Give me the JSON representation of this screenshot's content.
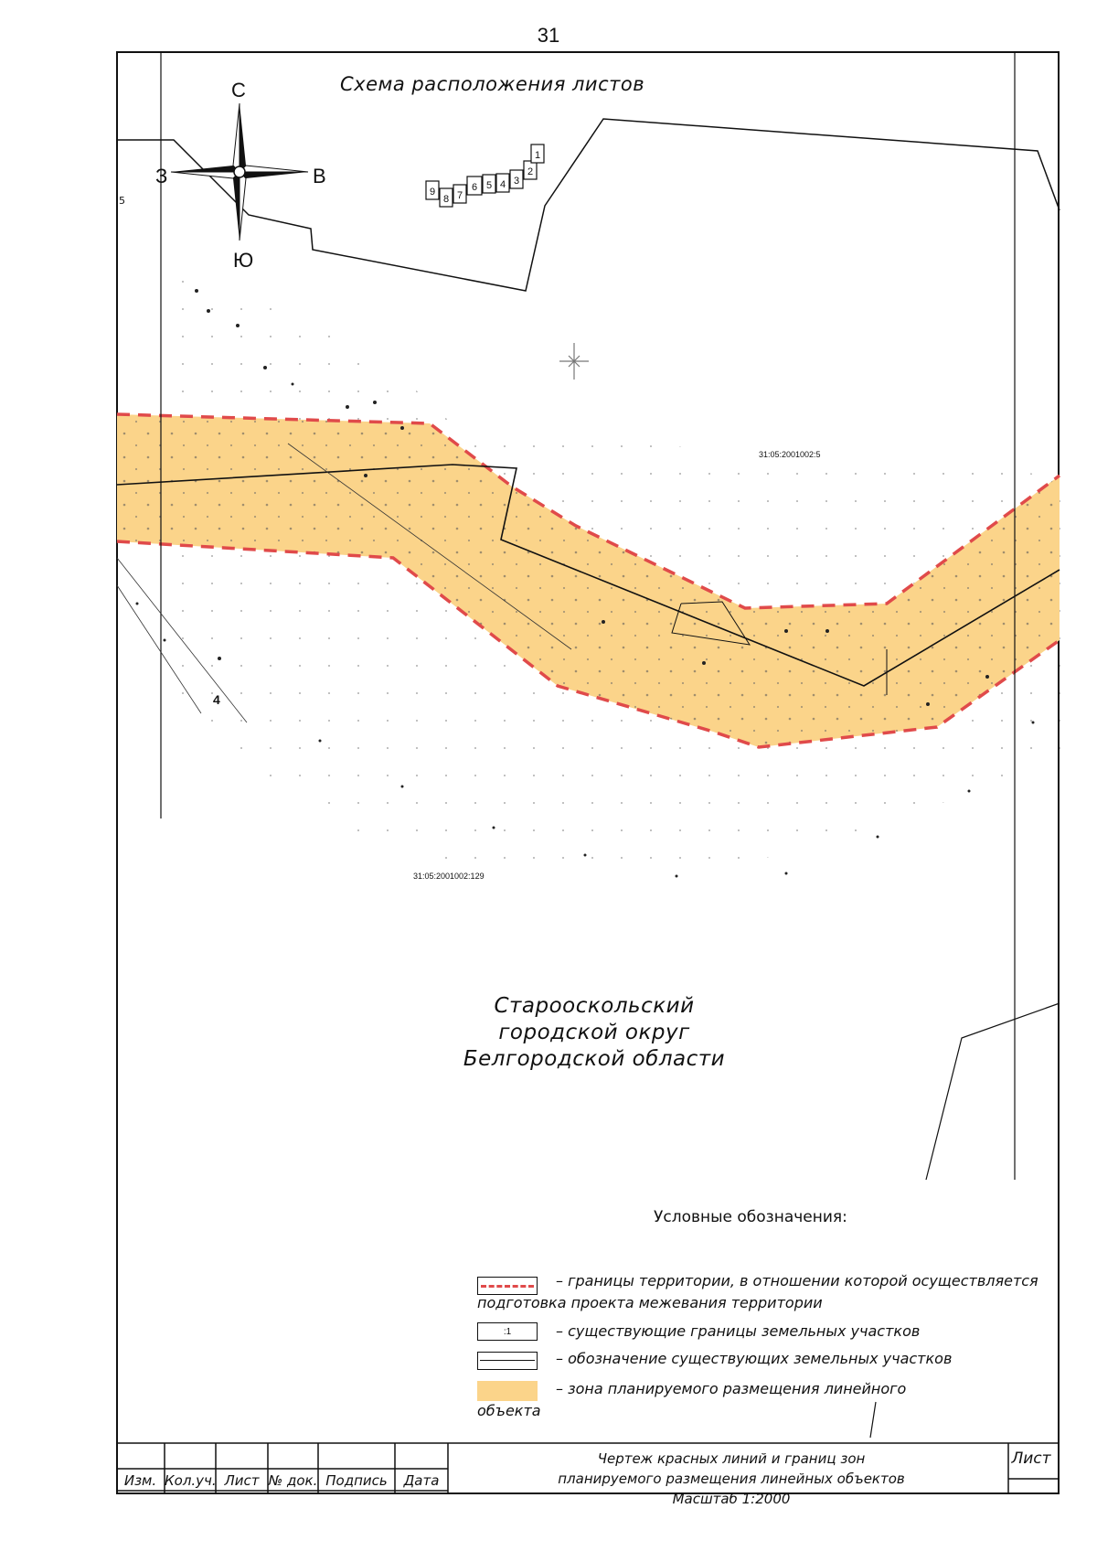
{
  "page_number": "31",
  "schema": {
    "title": "Схема расположения листов",
    "sheets": [
      "1",
      "2",
      "3",
      "4",
      "5",
      "6",
      "7",
      "8",
      "9"
    ]
  },
  "compass": {
    "north": "С",
    "south": "Ю",
    "west": "З",
    "east": "В"
  },
  "side_label": "5",
  "parcels": {
    "main": "31:05:2001002:5",
    "south": "31:05:2001002:129",
    "marker_4": "4"
  },
  "district": [
    "Старооскольский",
    "городской округ",
    "Белгородской области"
  ],
  "legend": {
    "title": "Условные обозначения:",
    "items": [
      {
        "text": "– границы территории, в отношении которой осуществляется",
        "text2": "подготовка проекта межевания территории"
      },
      {
        "box_label": ":1",
        "text": "– существующие границы земельных участков"
      },
      {
        "text": "– обозначение существующих земельных участков"
      },
      {
        "text": "– зона планируемого размещения линейного",
        "text2": "объекта"
      }
    ]
  },
  "colors": {
    "zone_fill": "#fbd48a",
    "red_boundary": "#e04a4a",
    "line": "#111111"
  },
  "title_block": {
    "columns": [
      "Изм.",
      "Кол.уч.",
      "Лист",
      "№ док.",
      "Подпись",
      "Дата"
    ],
    "title_lines": [
      "Чертеж красных линий и границ зон",
      "планируемого размещения линейных объектов",
      "Масштаб 1:2000"
    ],
    "sheet_label": "Лист"
  }
}
